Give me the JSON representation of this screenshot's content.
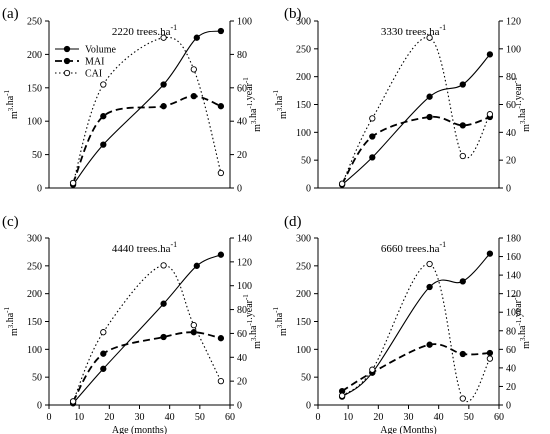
{
  "chart_data": [
    {
      "panel": "(a)",
      "title": "2220 trees.ha",
      "title_sup": "-1",
      "type": "line",
      "xlabel": "",
      "xlim": [
        0,
        60
      ],
      "xticks": [],
      "ylabel": "m3.ha-1",
      "ylim": [
        0,
        250
      ],
      "yticks": [
        0,
        50,
        100,
        150,
        200,
        250
      ],
      "y2label": "m3.ha-1.year-1",
      "y2lim": [
        0,
        100
      ],
      "y2ticks": [
        0,
        20,
        40,
        60,
        80,
        100
      ],
      "legend": {
        "position": "top-left",
        "entries": [
          {
            "label": "Volume",
            "marker": "filled",
            "line": "solid"
          },
          {
            "label": "MAI",
            "marker": "filled",
            "line": "dashed"
          },
          {
            "label": "CAI",
            "marker": "open",
            "line": "dotted"
          }
        ]
      },
      "series": [
        {
          "name": "Volume",
          "axis": "left",
          "style": "solid",
          "marker": "filled",
          "x": [
            8,
            18,
            38,
            49,
            57
          ],
          "y": [
            5,
            65,
            155,
            225,
            235
          ]
        },
        {
          "name": "MAI",
          "axis": "right",
          "style": "dashed",
          "marker": "filled",
          "x": [
            8,
            18,
            38,
            48,
            57
          ],
          "y": [
            3,
            43,
            49,
            55,
            49
          ]
        },
        {
          "name": "CAI",
          "axis": "right",
          "style": "dotted",
          "marker": "open",
          "x": [
            8,
            18,
            38,
            48,
            57
          ],
          "y": [
            3,
            62,
            90,
            71,
            9
          ]
        }
      ]
    },
    {
      "panel": "(b)",
      "title": "3330 trees.ha",
      "title_sup": "-1",
      "type": "line",
      "xlabel": "",
      "xlim": [
        0,
        60
      ],
      "xticks": [],
      "ylabel": "m3.ha-1",
      "ylim": [
        0,
        300
      ],
      "yticks": [
        0,
        50,
        100,
        150,
        200,
        250,
        300
      ],
      "y2label": "m3.ha-1.year-1",
      "y2lim": [
        0,
        120
      ],
      "y2ticks": [
        0,
        20,
        40,
        60,
        80,
        100,
        120
      ],
      "series": [
        {
          "name": "Volume",
          "axis": "left",
          "style": "solid",
          "marker": "filled",
          "x": [
            8,
            18,
            37,
            48,
            57
          ],
          "y": [
            6,
            55,
            164,
            186,
            240
          ]
        },
        {
          "name": "MAI",
          "axis": "right",
          "style": "dashed",
          "marker": "filled",
          "x": [
            8,
            18,
            37,
            48,
            57
          ],
          "y": [
            3,
            37,
            51,
            45,
            51
          ]
        },
        {
          "name": "CAI",
          "axis": "right",
          "style": "dotted",
          "marker": "open",
          "x": [
            8,
            18,
            37,
            48,
            57
          ],
          "y": [
            3,
            50,
            108,
            23,
            53
          ]
        }
      ]
    },
    {
      "panel": "(c)",
      "title": "4440 trees.ha",
      "title_sup": "-1",
      "type": "line",
      "xlabel": "Age (months)",
      "xlim": [
        0,
        60
      ],
      "xticks": [
        0,
        10,
        20,
        30,
        40,
        50,
        60
      ],
      "ylabel": "m3.ha-1",
      "ylim": [
        0,
        300
      ],
      "yticks": [
        0,
        50,
        100,
        150,
        200,
        250,
        300
      ],
      "y2label": "m3.ha-1.year-1",
      "y2lim": [
        0,
        140
      ],
      "y2ticks": [
        0,
        20,
        40,
        60,
        80,
        100,
        120,
        140
      ],
      "series": [
        {
          "name": "Volume",
          "axis": "left",
          "style": "solid",
          "marker": "filled",
          "x": [
            8,
            18,
            38,
            49,
            57
          ],
          "y": [
            3,
            65,
            182,
            250,
            270
          ]
        },
        {
          "name": "MAI",
          "axis": "right",
          "style": "dashed",
          "marker": "filled",
          "x": [
            8,
            18,
            38,
            48,
            57
          ],
          "y": [
            3,
            43,
            57,
            61,
            56
          ]
        },
        {
          "name": "CAI",
          "axis": "right",
          "style": "dotted",
          "marker": "open",
          "x": [
            8,
            18,
            38,
            48,
            57
          ],
          "y": [
            3,
            61,
            117,
            67,
            20
          ]
        }
      ]
    },
    {
      "panel": "(d)",
      "title": "6660 trees.ha",
      "title_sup": "-1",
      "type": "line",
      "xlabel": "Age (Months)",
      "xlim": [
        0,
        60
      ],
      "xticks": [
        0,
        10,
        20,
        30,
        40,
        50,
        60
      ],
      "ylabel": "m3.ha-1",
      "ylim": [
        0,
        300
      ],
      "yticks": [
        0,
        50,
        100,
        150,
        200,
        250,
        300
      ],
      "y2label": "m3.ha-1.year-1",
      "y2lim": [
        0,
        180
      ],
      "y2ticks": [
        0,
        20,
        40,
        60,
        80,
        100,
        120,
        140,
        160,
        180
      ],
      "series": [
        {
          "name": "Volume",
          "axis": "left",
          "style": "solid",
          "marker": "filled",
          "x": [
            8,
            18,
            37,
            48,
            57
          ],
          "y": [
            15,
            58,
            212,
            222,
            272
          ]
        },
        {
          "name": "MAI",
          "axis": "right",
          "style": "dashed",
          "marker": "filled",
          "x": [
            8,
            18,
            37,
            48,
            57
          ],
          "y": [
            15,
            35,
            65,
            55,
            56
          ]
        },
        {
          "name": "CAI",
          "axis": "right",
          "style": "dotted",
          "marker": "open",
          "x": [
            8,
            18,
            37,
            48,
            57
          ],
          "y": [
            10,
            38,
            152,
            7,
            50
          ]
        }
      ]
    }
  ]
}
